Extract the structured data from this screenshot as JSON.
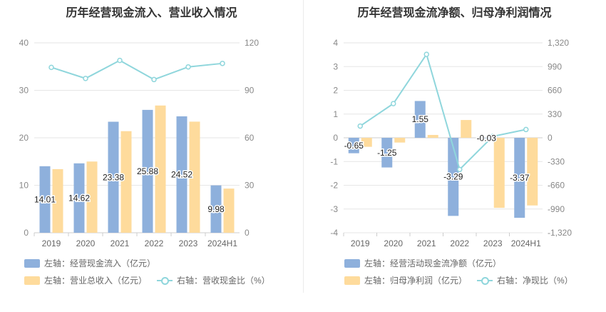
{
  "chart_data": [
    {
      "type": "bar",
      "title": "历年经营现金流入、营业收入情况",
      "categories": [
        "2019",
        "2020",
        "2021",
        "2022",
        "2023",
        "2024H1"
      ],
      "series": [
        {
          "name": "左轴：经营现金流入（亿元）",
          "type": "bar",
          "axis": "left",
          "color": "#8eb0dc",
          "values": [
            14.01,
            14.62,
            23.38,
            25.88,
            24.52,
            9.98
          ],
          "labels_shown": true
        },
        {
          "name": "左轴：营业总收入（亿元）",
          "type": "bar",
          "axis": "left",
          "color": "#fedb9c",
          "values": [
            13.4,
            15.0,
            21.4,
            26.8,
            23.4,
            9.3
          ],
          "labels_shown": false
        },
        {
          "name": "右轴：营收现金比（%）",
          "type": "line",
          "axis": "right",
          "color": "#8fd6dc",
          "values": [
            104.5,
            97.5,
            108.9,
            96.8,
            104.8,
            107.0
          ]
        }
      ],
      "left_axis": {
        "min": 0,
        "max": 40,
        "ticks": [
          "0",
          "10",
          "20",
          "30",
          "40"
        ]
      },
      "right_axis": {
        "min": 0,
        "max": 120,
        "ticks": [
          "0",
          "30",
          "60",
          "90",
          "120"
        ]
      },
      "grid": true,
      "legend_position": "bottom"
    },
    {
      "type": "bar",
      "title": "历年经营现金流净额、归母净利润情况",
      "categories": [
        "2019",
        "2020",
        "2021",
        "2022",
        "2023",
        "2024H1"
      ],
      "series": [
        {
          "name": "左轴：经营活动现金流净额（亿元）",
          "type": "bar",
          "axis": "left",
          "color": "#8eb0dc",
          "values": [
            -0.65,
            -1.25,
            1.55,
            -3.29,
            -0.03,
            -3.37
          ],
          "labels_shown": true
        },
        {
          "name": "左轴：归母净利润（亿元）",
          "type": "bar",
          "axis": "left",
          "color": "#fedb9c",
          "values": [
            -0.38,
            -0.2,
            0.12,
            0.75,
            -2.95,
            -2.85
          ],
          "labels_shown": false
        },
        {
          "name": "右轴：净现比（%）",
          "type": "line",
          "axis": "right",
          "color": "#8fd6dc",
          "values": [
            163,
            475,
            1160,
            -440,
            20,
            115
          ]
        }
      ],
      "left_axis": {
        "min": -4,
        "max": 4,
        "ticks": [
          "-4",
          "-3",
          "-2",
          "-1",
          "0",
          "1",
          "2",
          "3",
          "4"
        ]
      },
      "right_axis": {
        "min": -1320,
        "max": 1320,
        "ticks": [
          "-1,320",
          "-990",
          "-660",
          "-330",
          "0",
          "330",
          "660",
          "990",
          "1,320"
        ]
      },
      "grid": true,
      "legend_position": "bottom"
    }
  ]
}
